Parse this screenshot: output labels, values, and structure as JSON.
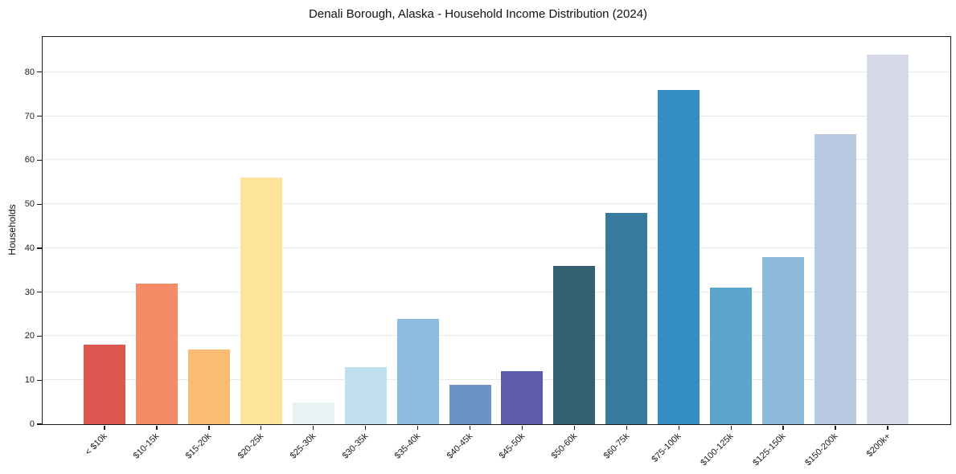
{
  "chart_data": {
    "type": "bar",
    "title": "Denali Borough, Alaska - Household Income Distribution (2024)",
    "xlabel": "",
    "ylabel": "Households",
    "categories": [
      "< $10k",
      "$10-15k",
      "$15-20k",
      "$20-25k",
      "$25-30k",
      "$30-35k",
      "$35-40k",
      "$40-45k",
      "$45-50k",
      "$50-60k",
      "$60-75k",
      "$75-100k",
      "$100-125k",
      "$125-150k",
      "$150-200k",
      "$200k+"
    ],
    "values": [
      18,
      32,
      17,
      56,
      5,
      13,
      24,
      9,
      12,
      36,
      48,
      76,
      31,
      38,
      66,
      84
    ],
    "bar_colors": [
      "#dc584f",
      "#f58a66",
      "#fabc72",
      "#fde49a",
      "#e9f3f6",
      "#c0e0ee",
      "#8cbdde",
      "#6c93c4",
      "#5c5caa",
      "#35606f",
      "#387a9e",
      "#358fc2",
      "#5ba5cd",
      "#8fb9d9",
      "#b8c9e1",
      "#d6d9e7"
    ],
    "ylim": [
      0,
      88
    ],
    "yticks": [
      0,
      10,
      20,
      30,
      40,
      50,
      60,
      70,
      80
    ],
    "grid": "horizontal",
    "legend": "none",
    "colors": {
      "grid": "#e9e9e9",
      "frame": "#1a1a1a",
      "tick": "#1a1a1a",
      "text": "#1c1c1c",
      "background": "#ffffff"
    }
  }
}
